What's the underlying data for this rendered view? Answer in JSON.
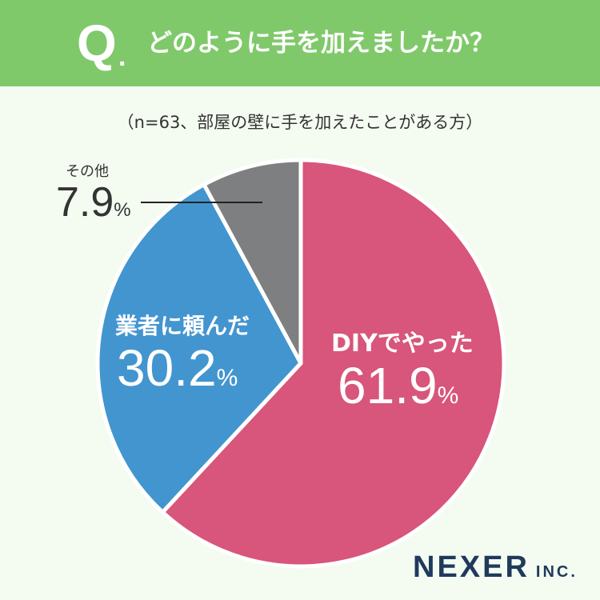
{
  "header": {
    "q_mark": "Q",
    "q_dot": ".",
    "question": "どのように手を加えましたか？",
    "bg_color": "#80c96b"
  },
  "subtitle": "（n=63、部屋の壁に手を加えたことがある方）",
  "chart_data": {
    "type": "pie",
    "start_angle_deg": 0,
    "direction": "clockwise",
    "slices": [
      {
        "label": "DIYでやった",
        "value": 61.9,
        "value_text": "61.9",
        "unit": "%",
        "color": "#d8557b"
      },
      {
        "label": "業者に頼んだ",
        "value": 30.2,
        "value_text": "30.2",
        "unit": "%",
        "color": "#4395cf"
      },
      {
        "label": "その他",
        "value": 7.9,
        "value_text": "7.9",
        "unit": "%",
        "color": "#7e7f81"
      }
    ]
  },
  "brand": {
    "name": "NEXER",
    "suffix": "INC."
  }
}
